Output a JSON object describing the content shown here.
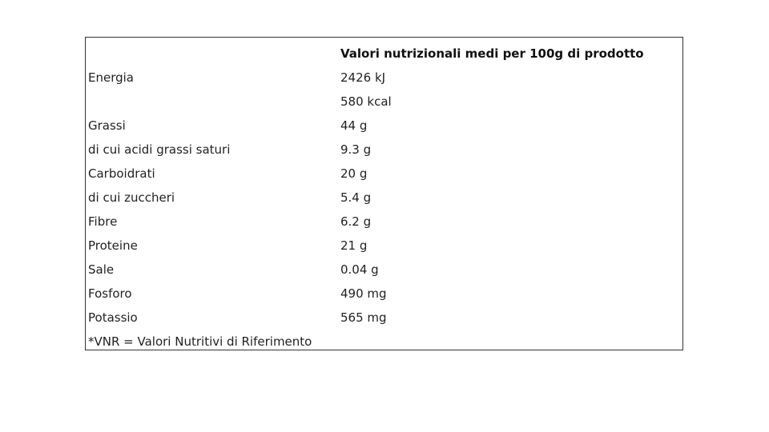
{
  "table": {
    "header": [
      "",
      "Valori nutrizionali medi per 100g di prodotto"
    ],
    "rows": [
      [
        "Energia",
        "2426 kJ"
      ],
      [
        "",
        "580 kcal"
      ],
      [
        "Grassi",
        "44 g"
      ],
      [
        "di cui acidi grassi saturi",
        "9.3 g"
      ],
      [
        "Carboidrati",
        "20 g"
      ],
      [
        "di cui zuccheri",
        "5.4 g"
      ],
      [
        "Fibre",
        "6.2 g"
      ],
      [
        "Proteine",
        "21 g"
      ],
      [
        "Sale",
        "0.04 g"
      ],
      [
        "Fosforo",
        "490 mg"
      ],
      [
        "Potassio",
        "565 mg"
      ]
    ],
    "footnote": "*VNR = Valori Nutritivi di Riferimento"
  }
}
